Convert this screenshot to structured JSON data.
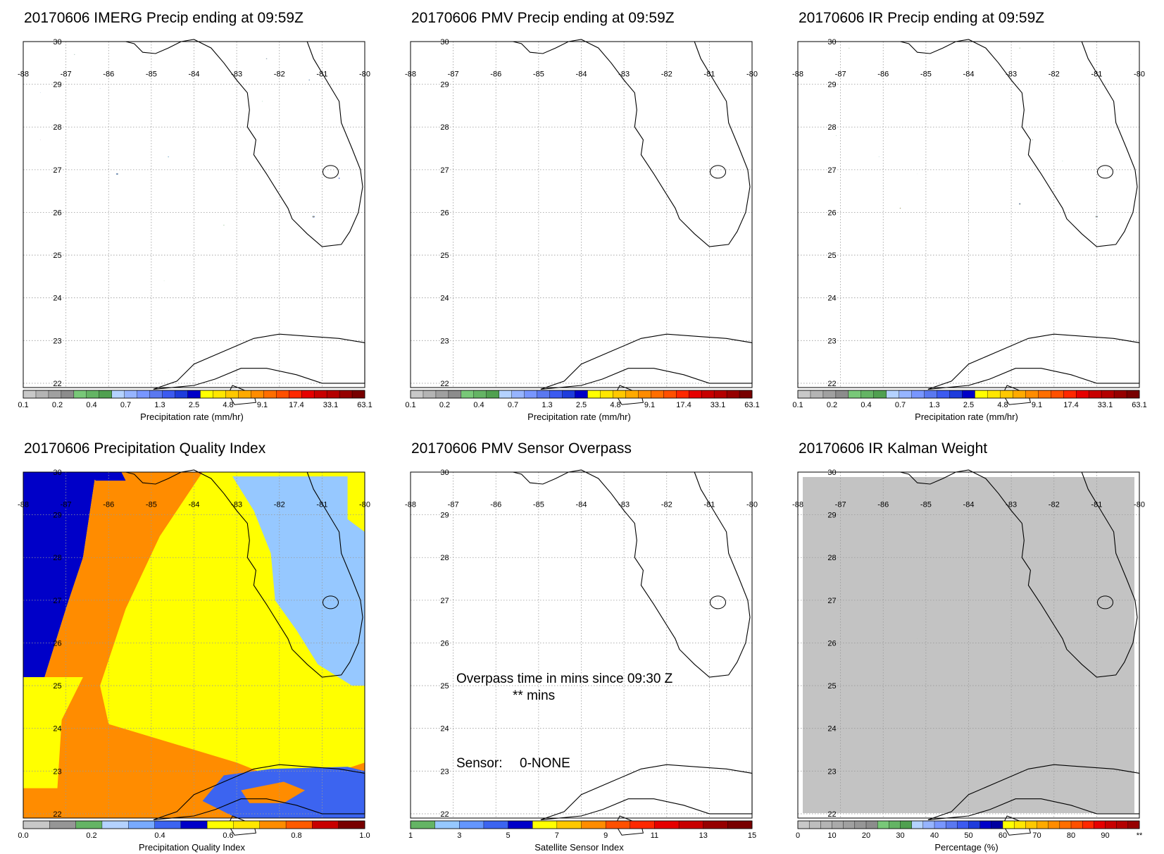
{
  "colors": {
    "precip": [
      "#c8c8c8",
      "#b4b4b4",
      "#a0a0a0",
      "#8c8c8c",
      "#78c878",
      "#64b464",
      "#50a050",
      "#b4d2ff",
      "#96b4ff",
      "#7896ff",
      "#5a78f0",
      "#3c5af0",
      "#1e3cdc",
      "#0000c8",
      "#ffff00",
      "#ffe600",
      "#ffc800",
      "#ffaa00",
      "#ff8c00",
      "#ff6e00",
      "#ff5000",
      "#ff2800",
      "#e60000",
      "#c80000",
      "#b40000",
      "#960000",
      "#780000"
    ],
    "pqi": [
      "#c8c8c8",
      "#969696",
      "#64b464",
      "#b4d2ff",
      "#78aaff",
      "#3c64f0",
      "#0000c8",
      "#ffff00",
      "#ffe600",
      "#ff8c00",
      "#ff5a00",
      "#c80000",
      "#780000"
    ],
    "sensor": [
      "#64b464",
      "#96c8ff",
      "#6496ff",
      "#3c64f0",
      "#0000c8",
      "#ffff00",
      "#ffc800",
      "#ff8c00",
      "#ff5000",
      "#ff2800",
      "#e60000",
      "#c80000",
      "#960000",
      "#780000"
    ],
    "percent": [
      "#c8c8c8",
      "#bebebe",
      "#b4b4b4",
      "#aaaaaa",
      "#a0a0a0",
      "#969696",
      "#8c8c8c",
      "#78c878",
      "#64b464",
      "#50a050",
      "#b4d2ff",
      "#96b4ff",
      "#7896ff",
      "#5a78f0",
      "#3c5af0",
      "#1e3cdc",
      "#0000c8",
      "#0000a0",
      "#ffff00",
      "#ffe600",
      "#ffc800",
      "#ffaa00",
      "#ff8c00",
      "#ff6e00",
      "#ff5000",
      "#ff2800",
      "#e60000",
      "#c80000",
      "#b40000",
      "#960000"
    ]
  },
  "map": {
    "lon_labels": [
      "-88",
      "-87",
      "-86",
      "-85",
      "-84",
      "-83",
      "-82",
      "-81",
      "-80"
    ],
    "lat_labels": [
      "30",
      "29",
      "28",
      "27",
      "26",
      "25",
      "24",
      "23",
      "22"
    ]
  },
  "panels": [
    {
      "id": "imerg",
      "title": "20170606 IMERG Precip ending at 09:59Z",
      "colorbar": {
        "scale": "precip",
        "title": "Precipitation rate (mm/hr)",
        "ticks": [
          "0.1",
          "0.2",
          "0.4",
          "0.7",
          "1.3",
          "2.5",
          "4.8",
          "9.1",
          "17.4",
          "33.1",
          "63.1"
        ]
      }
    },
    {
      "id": "pmv",
      "title": "20170606 PMV Precip ending at 09:59Z",
      "colorbar": {
        "scale": "precip",
        "title": "Precipitation rate (mm/hr)",
        "ticks": [
          "0.1",
          "0.2",
          "0.4",
          "0.7",
          "1.3",
          "2.5",
          "4.8",
          "9.1",
          "17.4",
          "33.1",
          "63.1"
        ]
      }
    },
    {
      "id": "ir",
      "title": "20170606 IR Precip ending at 09:59Z",
      "colorbar": {
        "scale": "precip",
        "title": "Precipitation rate (mm/hr)",
        "ticks": [
          "0.1",
          "0.2",
          "0.4",
          "0.7",
          "1.3",
          "2.5",
          "4.8",
          "9.1",
          "17.4",
          "33.1",
          "63.1"
        ]
      }
    },
    {
      "id": "pqi",
      "title": "20170606 Precipitation Quality Index",
      "colorbar": {
        "scale": "pqi",
        "title": "Precipitation Quality Index",
        "ticks": [
          "0.0",
          "0.2",
          "0.4",
          "0.6",
          "0.8",
          "1.0"
        ]
      }
    },
    {
      "id": "overpass",
      "title": "20170606 PMV Sensor Overpass",
      "overlay": {
        "overpass_line1": "Overpass time in mins since 09:30 Z",
        "overpass_line2": "** mins",
        "sensor_label": "Sensor:",
        "sensor_value": "0-NONE"
      },
      "colorbar": {
        "scale": "sensor",
        "title": "Satellite Sensor Index",
        "ticks": [
          "1",
          "3",
          "5",
          "7",
          "9",
          "11",
          "13",
          "15"
        ]
      }
    },
    {
      "id": "kalman",
      "title": "20170606 IR Kalman Weight",
      "colorbar": {
        "scale": "percent",
        "title": "Percentage (%)",
        "ticks": [
          "0",
          "10",
          "20",
          "30",
          "40",
          "50",
          "60",
          "70",
          "80",
          "90",
          "**"
        ]
      }
    }
  ]
}
